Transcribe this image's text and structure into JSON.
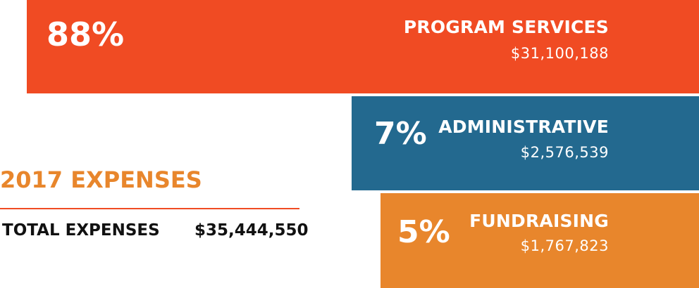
{
  "chart_data": {
    "type": "bar",
    "title": "2017 EXPENSES",
    "categories": [
      "PROGRAM SERVICES",
      "ADMINISTRATIVE",
      "FUNDRAISING"
    ],
    "values": [
      31100188,
      2576539,
      1767823
    ],
    "percent_labels": [
      "88%",
      "7%",
      "5%"
    ],
    "value_labels": [
      "$31,100,188",
      "$2,576,539",
      "$1,767,823"
    ],
    "colors": [
      "#f04b23",
      "#23698f",
      "#e8862c"
    ],
    "grid": false,
    "legend": "none"
  },
  "summary": {
    "title": "2017 EXPENSES",
    "title_color": "#e8862c",
    "rule_color": "#f04b23",
    "total_label": "TOTAL EXPENSES",
    "total_value": "$35,444,550"
  }
}
